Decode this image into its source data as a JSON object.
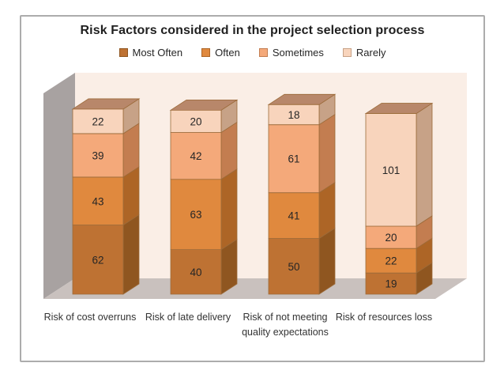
{
  "title": "Risk Factors considered in the project selection process",
  "chart_data": {
    "type": "bar",
    "subtype": "3d-stacked-column",
    "title": "Risk Factors considered in the project selection process",
    "categories": [
      "Risk of cost overruns",
      "Risk of late delivery",
      "Risk of not meeting quality expectations",
      "Risk of resources loss"
    ],
    "series": [
      {
        "name": "Most Often",
        "values": [
          62,
          40,
          50,
          19
        ],
        "color": "#BE7233",
        "side_color": "#8F5620",
        "top_color": "#9E6127"
      },
      {
        "name": "Often",
        "values": [
          43,
          63,
          41,
          22
        ],
        "color": "#E0893E",
        "side_color": "#AD6526",
        "top_color": "#BC6F2D"
      },
      {
        "name": "Sometimes",
        "values": [
          39,
          42,
          61,
          20
        ],
        "color": "#F4A97A",
        "side_color": "#C37D50",
        "top_color": "#D2894F"
      },
      {
        "name": "Rarely",
        "values": [
          22,
          20,
          18,
          101
        ],
        "color": "#F8D4BC",
        "side_color": "#C7A287",
        "top_color": "#B8876A"
      }
    ],
    "totals": [
      166,
      165,
      170,
      162
    ],
    "legend_position": "top",
    "value_labels": true,
    "grid": false,
    "colors": {
      "plot_bg": "#FAEEE6",
      "wall": "#A8A2A1",
      "floor": "#C9C1BE",
      "card_border": "#ACACAC",
      "value_label": "#262626",
      "segment_stroke": "#9C6B3A",
      "title_text": "#1F1F1F",
      "category_text": "#333333"
    }
  }
}
